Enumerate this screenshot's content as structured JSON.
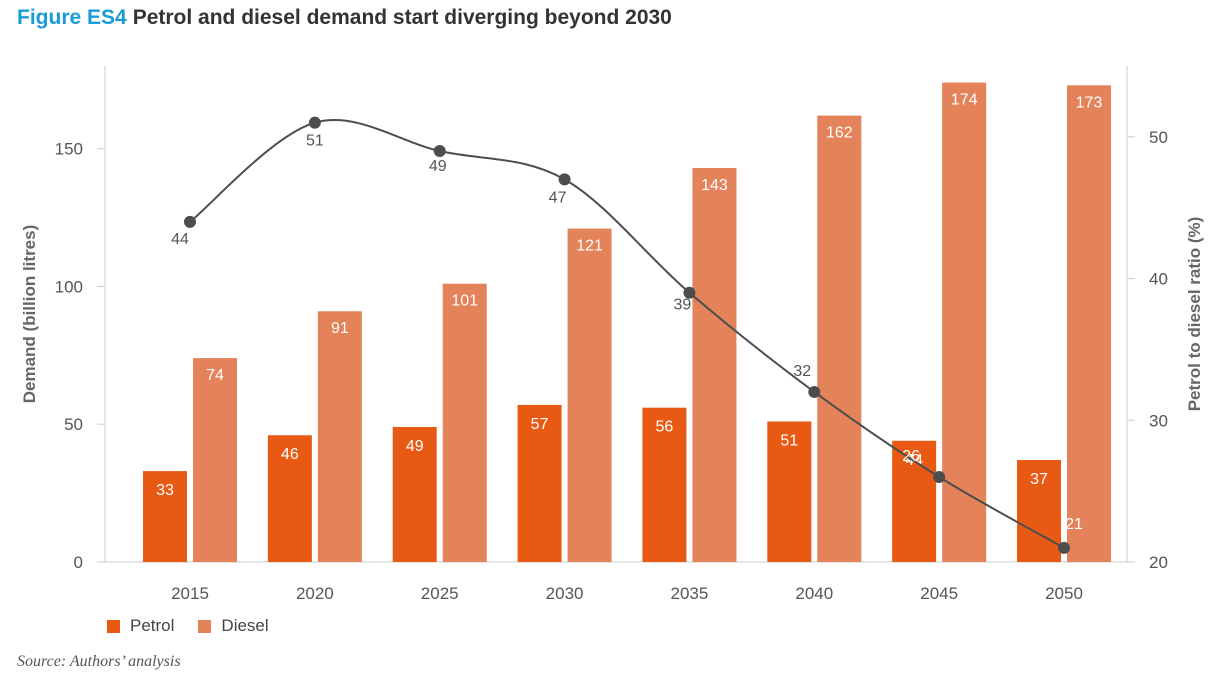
{
  "title": {
    "label": "Figure ES4",
    "text": "Petrol and diesel demand start diverging beyond 2030"
  },
  "source": "Source: Authors’ analysis",
  "colors": {
    "petrol": "#e85a14",
    "diesel": "#e4825a",
    "line": "#4d4d4d",
    "axis": "#cccccc"
  },
  "chart_data": {
    "type": "bar",
    "categories": [
      "2015",
      "2020",
      "2025",
      "2030",
      "2035",
      "2040",
      "2045",
      "2050"
    ],
    "series": [
      {
        "name": "Petrol",
        "values": [
          33,
          46,
          49,
          57,
          56,
          51,
          44,
          37
        ],
        "axis": "left"
      },
      {
        "name": "Diesel",
        "values": [
          74,
          91,
          101,
          121,
          143,
          162,
          174,
          173
        ],
        "axis": "left"
      }
    ],
    "line_series": {
      "type": "line",
      "axis": "right",
      "values": [
        44,
        51,
        49,
        47,
        39,
        32,
        26,
        21
      ]
    },
    "ylabel": "Demand (billion litres)",
    "ylim": [
      0,
      180
    ],
    "yticks": [
      0,
      50,
      100,
      150
    ],
    "y2label": "Petrol to diesel ratio (%)",
    "y2lim": [
      20,
      55
    ],
    "y2ticks": [
      20,
      30,
      40,
      50
    ],
    "legend": {
      "placement": "bottom-left",
      "entries": [
        "Petrol",
        "Diesel"
      ]
    },
    "grid": false
  }
}
